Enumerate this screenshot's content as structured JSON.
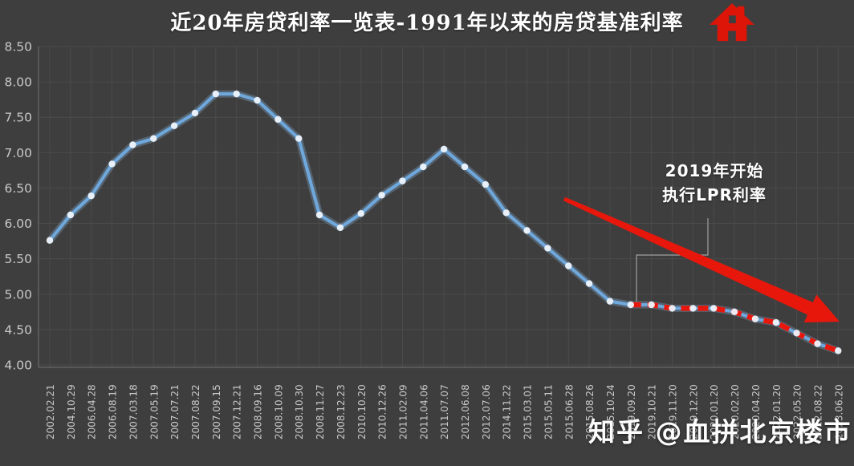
{
  "title": "近20年房贷利率一览表-1991年以来的房贷基准利率",
  "watermark": "知乎 @血拼北京楼市",
  "colors": {
    "background": "#3e3e3e",
    "grid": "#4b4b4b",
    "axis": "#6a6a6a",
    "tick_label": "#c9c9c9",
    "title": "#ffffff",
    "line_blue": "#6fa8dc",
    "line_blue_glow": "#8cb9e6",
    "marker": "#eef4fc",
    "red": "#e8170c",
    "leader": "#a0a0a0",
    "watermark": "#fcfcfc"
  },
  "chart_data": {
    "type": "line",
    "title": "近20年房贷利率一览表-1991年以来的房贷基准利率",
    "xlabel": "",
    "ylabel": "",
    "ylim": [
      4.0,
      8.5
    ],
    "ytick_step": 0.5,
    "grid": true,
    "legend_position": "none",
    "categories": [
      "2002.02.21",
      "2004.10.29",
      "2006.04.28",
      "2006.08.19",
      "2007.03.18",
      "2007.05.19",
      "2007.07.21",
      "2007.08.22",
      "2007.09.15",
      "2007.12.21",
      "2008.09.16",
      "2008.10.09",
      "2008.10.30",
      "2008.11.27",
      "2008.12.23",
      "2010.10.20",
      "2010.12.26",
      "2011.02.09",
      "2011.04.06",
      "2011.07.07",
      "2012.06.08",
      "2012.07.06",
      "2014.11.22",
      "2015.03.01",
      "2015.05.11",
      "2015.06.28",
      "2015.08.26",
      "2015.10.24",
      "2019.09.20",
      "2019.10.21",
      "2019.11.20",
      "2019.12.20",
      "2020.01.20",
      "2020.02.20",
      "2020.04.20",
      "2022.01.20",
      "2022.05.20",
      "2022.08.22",
      "2023.06.20"
    ],
    "values": [
      5.76,
      6.12,
      6.39,
      6.84,
      7.11,
      7.2,
      7.38,
      7.56,
      7.83,
      7.83,
      7.74,
      7.47,
      7.2,
      6.12,
      5.94,
      6.14,
      6.4,
      6.6,
      6.8,
      7.05,
      6.8,
      6.55,
      6.15,
      5.9,
      5.65,
      5.4,
      5.15,
      4.9,
      4.85,
      4.85,
      4.8,
      4.8,
      4.8,
      4.75,
      4.65,
      4.6,
      4.45,
      4.3,
      4.2
    ],
    "segments": [
      {
        "name": "基准利率",
        "style": "solid-blue",
        "range": [
          0,
          28
        ]
      },
      {
        "name": "LPR利率",
        "style": "dashed-red",
        "range": [
          28,
          38
        ]
      }
    ],
    "annotation": {
      "line1": "2019年开始",
      "line2": "执行LPR利率"
    }
  }
}
